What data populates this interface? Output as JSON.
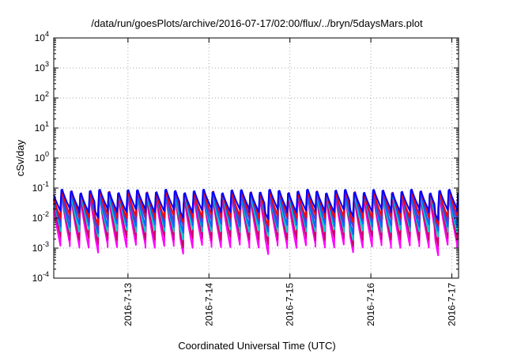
{
  "chart_data": {
    "type": "line",
    "title": "/data/run/goesPlots/archive/2016-07-17/02:00/flux/../bryn/5daysMars.plot",
    "xlabel": "Coordinated Universal Time (UTC)",
    "ylabel": "cSv/day",
    "y_scale": "log",
    "ylim": [
      0.0001,
      10000
    ],
    "xlim": [
      "2016-07-12 02:00",
      "2016-07-17 02:00"
    ],
    "x_ticks": [
      "2016-7-13",
      "2016-7-14",
      "2016-7-15",
      "2016-7-16",
      "2016-7-17"
    ],
    "y_tick_labels": [
      {
        "base": "10",
        "exp": "-4"
      },
      {
        "base": "10",
        "exp": "-3"
      },
      {
        "base": "10",
        "exp": "-2"
      },
      {
        "base": "10",
        "exp": "-1"
      },
      {
        "base": "10",
        "exp": "0"
      },
      {
        "base": "10",
        "exp": "1"
      },
      {
        "base": "10",
        "exp": "2"
      },
      {
        "base": "10",
        "exp": "3"
      },
      {
        "base": "10",
        "exp": "4"
      }
    ],
    "grid": true,
    "legend": "none",
    "pattern": {
      "sawtooth_period_hours": 2.8,
      "description": "Repeating sawtooth: sharp rise then decay each cycle"
    },
    "series": [
      {
        "color": "#ff00ff",
        "peak": 0.07,
        "trough": 0.0012
      },
      {
        "color": "#cc0066",
        "peak": 0.075,
        "trough": 0.0022
      },
      {
        "color": "#00cccc",
        "peak": 0.08,
        "trough": 0.004
      },
      {
        "color": "#0066ff",
        "peak": 0.085,
        "trough": 0.006
      },
      {
        "color": "#6633cc",
        "peak": 0.09,
        "trough": 0.009
      },
      {
        "color": "#ff0000",
        "peak": 0.095,
        "trough": 0.012
      },
      {
        "color": "#0000ff",
        "peak": 0.1,
        "trough": 0.018
      }
    ]
  }
}
